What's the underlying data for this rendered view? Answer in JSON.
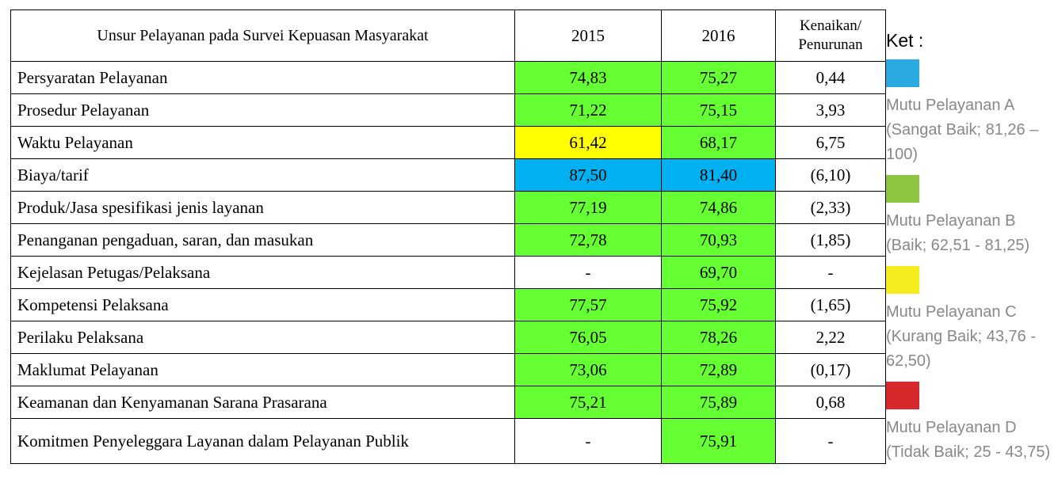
{
  "table": {
    "header": [
      "Unsur Pelayanan pada Survei Kepuasan Masyarakat",
      "2015",
      "2016",
      "Kenaikan/ Penurunan"
    ],
    "rows": [
      {
        "cells": [
          "Persyaratan Pelayanan",
          "74,83",
          "75,27",
          "0,44"
        ],
        "fills": [
          "#66ff33",
          "#66ff33"
        ]
      },
      {
        "cells": [
          "Prosedur Pelayanan",
          "71,22",
          "75,15",
          "3,93"
        ],
        "fills": [
          "#66ff33",
          "#66ff33"
        ]
      },
      {
        "cells": [
          "Waktu Pelayanan",
          "61,42",
          "68,17",
          "6,75"
        ],
        "fills": [
          "#ffff00",
          "#66ff33"
        ]
      },
      {
        "cells": [
          "Biaya/tarif",
          "87,50",
          "81,40",
          "(6,10)"
        ],
        "fills": [
          "#00b0f0",
          "#00b0f0"
        ]
      },
      {
        "cells": [
          "Produk/Jasa spesifikasi jenis layanan",
          "77,19",
          "74,86",
          "(2,33)"
        ],
        "fills": [
          "#66ff33",
          "#66ff33"
        ]
      },
      {
        "cells": [
          "Penanganan pengaduan, saran, dan masukan",
          "72,78",
          "70,93",
          "(1,85)"
        ],
        "fills": [
          "#66ff33",
          "#66ff33"
        ]
      },
      {
        "cells": [
          "Kejelasan Petugas/Pelaksana",
          "-",
          "69,70",
          "-"
        ],
        "fills": [
          null,
          "#66ff33"
        ]
      },
      {
        "cells": [
          "Kompetensi Pelaksana",
          "77,57",
          "75,92",
          "(1,65)"
        ],
        "fills": [
          "#66ff33",
          "#66ff33"
        ]
      },
      {
        "cells": [
          "Perilaku Pelaksana",
          "76,05",
          "78,26",
          "2,22"
        ],
        "fills": [
          "#66ff33",
          "#66ff33"
        ]
      },
      {
        "cells": [
          "Maklumat Pelayanan",
          "73,06",
          "72,89",
          "(0,17)"
        ],
        "fills": [
          "#66ff33",
          "#66ff33"
        ]
      },
      {
        "cells": [
          "Keamanan dan Kenyamanan Sarana Prasarana",
          "75,21",
          "75,89",
          "0,68"
        ],
        "fills": [
          "#66ff33",
          "#66ff33"
        ]
      },
      {
        "cells": [
          "Komitmen Penyeleggara Layanan dalam Pelayanan Publik",
          "-",
          "75,91",
          "-"
        ],
        "fills": [
          null,
          "#66ff33"
        ]
      }
    ]
  },
  "legend": {
    "title": "Ket :",
    "items": [
      {
        "label": "Mutu Pelayanan A (Sangat Baik; 81,26 – 100)",
        "color": "#29abe2"
      },
      {
        "label": "Mutu Pelayanan B (Baik; 62,51 - 81,25)",
        "color": "#8dc63f"
      },
      {
        "label": "Mutu Pelayanan C (Kurang Baik; 43,76 - 62,50)",
        "color": "#f7ec1d"
      },
      {
        "label": "Mutu Pelayanan D (Tidak Baik; 25 - 43,75)",
        "color": "#d7282e"
      }
    ]
  }
}
